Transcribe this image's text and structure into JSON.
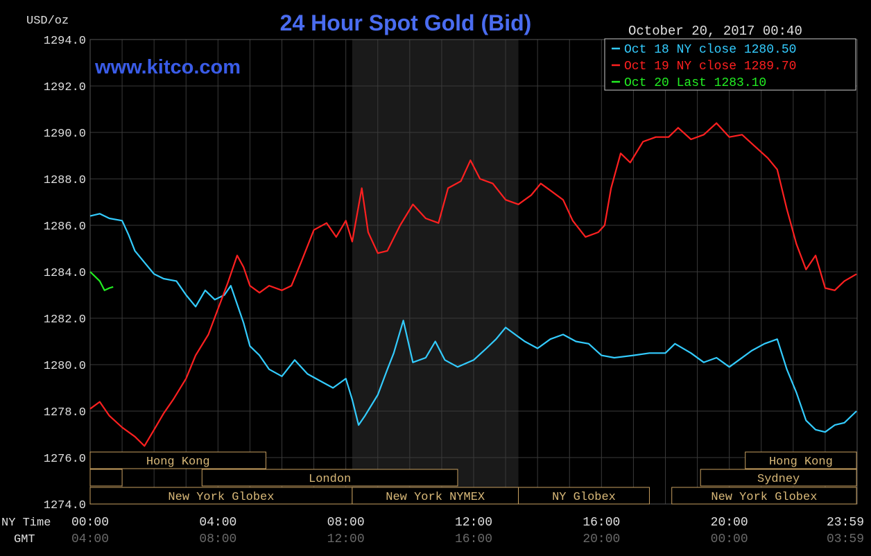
{
  "chart_data": {
    "type": "line",
    "title": "24 Hour Spot Gold (Bid)",
    "watermark": "www.kitco.com",
    "timestamp": "October 20, 2017 00:40",
    "ylabel": "USD/oz",
    "ylim": [
      1274,
      1294
    ],
    "yticks": [
      "1294.0",
      "1292.0",
      "1290.0",
      "1288.0",
      "1286.0",
      "1284.0",
      "1282.0",
      "1280.0",
      "1278.0",
      "1276.0",
      "1274.0"
    ],
    "xlim": [
      0,
      24
    ],
    "ny_time_label": "NY Time",
    "gmt_label": "GMT",
    "x_ticks": [
      {
        "h": 0,
        "ny": "00:00",
        "gmt": "04:00"
      },
      {
        "h": 4,
        "ny": "04:00",
        "gmt": "08:00"
      },
      {
        "h": 8,
        "ny": "08:00",
        "gmt": "12:00"
      },
      {
        "h": 12,
        "ny": "12:00",
        "gmt": "16:00"
      },
      {
        "h": 16,
        "ny": "16:00",
        "gmt": "20:00"
      },
      {
        "h": 20,
        "ny": "20:00",
        "gmt": "00:00"
      },
      {
        "h": 23.98,
        "ny": "23:59",
        "gmt": "03:59"
      }
    ],
    "shaded_hours": [
      8.2,
      13.4
    ],
    "grid": true,
    "legend_position": "top-right",
    "series": [
      {
        "name": "Oct 18 NY close 1280.50",
        "color": "#33ccff",
        "points": [
          [
            0,
            1286.4
          ],
          [
            0.3,
            1286.5
          ],
          [
            0.6,
            1286.3
          ],
          [
            1,
            1286.2
          ],
          [
            1.2,
            1285.6
          ],
          [
            1.4,
            1284.9
          ],
          [
            1.7,
            1284.4
          ],
          [
            2,
            1283.9
          ],
          [
            2.3,
            1283.7
          ],
          [
            2.7,
            1283.6
          ],
          [
            3,
            1283.0
          ],
          [
            3.3,
            1282.5
          ],
          [
            3.6,
            1283.2
          ],
          [
            3.9,
            1282.8
          ],
          [
            4.2,
            1283.0
          ],
          [
            4.4,
            1283.4
          ],
          [
            4.6,
            1282.6
          ],
          [
            4.8,
            1281.8
          ],
          [
            5,
            1280.8
          ],
          [
            5.3,
            1280.4
          ],
          [
            5.6,
            1279.8
          ],
          [
            6,
            1279.5
          ],
          [
            6.4,
            1280.2
          ],
          [
            6.8,
            1279.6
          ],
          [
            7.2,
            1279.3
          ],
          [
            7.6,
            1279.0
          ],
          [
            8,
            1279.4
          ],
          [
            8.2,
            1278.5
          ],
          [
            8.4,
            1277.4
          ],
          [
            8.6,
            1277.8
          ],
          [
            9,
            1278.7
          ],
          [
            9.3,
            1279.8
          ],
          [
            9.5,
            1280.5
          ],
          [
            9.8,
            1281.9
          ],
          [
            10.1,
            1280.1
          ],
          [
            10.5,
            1280.3
          ],
          [
            10.8,
            1281.0
          ],
          [
            11.1,
            1280.2
          ],
          [
            11.5,
            1279.9
          ],
          [
            12,
            1280.2
          ],
          [
            12.4,
            1280.7
          ],
          [
            12.7,
            1281.1
          ],
          [
            13,
            1281.6
          ],
          [
            13.3,
            1281.3
          ],
          [
            13.6,
            1281.0
          ],
          [
            14,
            1280.7
          ],
          [
            14.4,
            1281.1
          ],
          [
            14.8,
            1281.3
          ],
          [
            15.2,
            1281.0
          ],
          [
            15.6,
            1280.9
          ],
          [
            16,
            1280.4
          ],
          [
            16.4,
            1280.3
          ],
          [
            17,
            1280.4
          ],
          [
            17.5,
            1280.5
          ],
          [
            18,
            1280.5
          ],
          [
            18.3,
            1280.9
          ],
          [
            18.8,
            1280.5
          ],
          [
            19.2,
            1280.1
          ],
          [
            19.6,
            1280.3
          ],
          [
            20,
            1279.9
          ],
          [
            20.3,
            1280.2
          ],
          [
            20.7,
            1280.6
          ],
          [
            21.1,
            1280.9
          ],
          [
            21.5,
            1281.1
          ],
          [
            21.8,
            1279.8
          ],
          [
            22.1,
            1278.8
          ],
          [
            22.4,
            1277.6
          ],
          [
            22.7,
            1277.2
          ],
          [
            23,
            1277.1
          ],
          [
            23.3,
            1277.4
          ],
          [
            23.6,
            1277.5
          ],
          [
            23.98,
            1278.0
          ]
        ]
      },
      {
        "name": "Oct 19 NY close 1289.70",
        "color": "#ff2020",
        "points": [
          [
            0,
            1278.1
          ],
          [
            0.3,
            1278.4
          ],
          [
            0.6,
            1277.8
          ],
          [
            1,
            1277.3
          ],
          [
            1.4,
            1276.9
          ],
          [
            1.7,
            1276.5
          ],
          [
            2,
            1277.2
          ],
          [
            2.3,
            1277.9
          ],
          [
            2.6,
            1278.5
          ],
          [
            3,
            1279.4
          ],
          [
            3.3,
            1280.4
          ],
          [
            3.7,
            1281.3
          ],
          [
            4,
            1282.4
          ],
          [
            4.3,
            1283.5
          ],
          [
            4.6,
            1284.7
          ],
          [
            4.8,
            1284.2
          ],
          [
            5,
            1283.4
          ],
          [
            5.3,
            1283.1
          ],
          [
            5.6,
            1283.4
          ],
          [
            6,
            1283.2
          ],
          [
            6.3,
            1283.4
          ],
          [
            6.6,
            1284.4
          ],
          [
            7,
            1285.8
          ],
          [
            7.4,
            1286.1
          ],
          [
            7.7,
            1285.5
          ],
          [
            8,
            1286.2
          ],
          [
            8.2,
            1285.3
          ],
          [
            8.5,
            1287.6
          ],
          [
            8.7,
            1285.7
          ],
          [
            9,
            1284.8
          ],
          [
            9.3,
            1284.9
          ],
          [
            9.7,
            1286.0
          ],
          [
            10.1,
            1286.9
          ],
          [
            10.5,
            1286.3
          ],
          [
            10.9,
            1286.1
          ],
          [
            11.2,
            1287.6
          ],
          [
            11.6,
            1287.9
          ],
          [
            11.9,
            1288.8
          ],
          [
            12.2,
            1288.0
          ],
          [
            12.6,
            1287.8
          ],
          [
            13,
            1287.1
          ],
          [
            13.4,
            1286.9
          ],
          [
            13.8,
            1287.3
          ],
          [
            14.1,
            1287.8
          ],
          [
            14.4,
            1287.5
          ],
          [
            14.8,
            1287.1
          ],
          [
            15.1,
            1286.2
          ],
          [
            15.5,
            1285.5
          ],
          [
            15.9,
            1285.7
          ],
          [
            16.1,
            1286.0
          ],
          [
            16.3,
            1287.6
          ],
          [
            16.6,
            1289.1
          ],
          [
            16.9,
            1288.7
          ],
          [
            17.3,
            1289.6
          ],
          [
            17.7,
            1289.8
          ],
          [
            18.1,
            1289.8
          ],
          [
            18.4,
            1290.2
          ],
          [
            18.8,
            1289.7
          ],
          [
            19.2,
            1289.9
          ],
          [
            19.6,
            1290.4
          ],
          [
            20,
            1289.8
          ],
          [
            20.4,
            1289.9
          ],
          [
            20.8,
            1289.4
          ],
          [
            21.2,
            1288.9
          ],
          [
            21.5,
            1288.4
          ],
          [
            21.8,
            1286.7
          ],
          [
            22.1,
            1285.2
          ],
          [
            22.4,
            1284.1
          ],
          [
            22.7,
            1284.7
          ],
          [
            23,
            1283.3
          ],
          [
            23.3,
            1283.2
          ],
          [
            23.6,
            1283.6
          ],
          [
            23.98,
            1283.9
          ]
        ]
      },
      {
        "name": "Oct 20 Last 1283.10",
        "color": "#22ee22",
        "points": [
          [
            0,
            1284.0
          ],
          [
            0.15,
            1283.8
          ],
          [
            0.3,
            1283.6
          ],
          [
            0.45,
            1283.2
          ],
          [
            0.6,
            1283.3
          ],
          [
            0.72,
            1283.35
          ]
        ]
      }
    ],
    "market_bars": [
      {
        "label": "Hong Kong",
        "row": 1,
        "start": 0,
        "end": 5.5,
        "text": true
      },
      {
        "label": "Hong Kong",
        "row": 1,
        "start": 20.5,
        "end": 23.98,
        "text": true
      },
      {
        "label": "",
        "row": 2,
        "start": 0,
        "end": 1,
        "text": false
      },
      {
        "label": "London",
        "row": 2,
        "start": 3.5,
        "end": 11.5,
        "text": true
      },
      {
        "label": "Sydney",
        "row": 2,
        "start": 19.1,
        "end": 23.98,
        "text": true
      },
      {
        "label": "New York Globex",
        "row": 3,
        "start": 0,
        "end": 8.2,
        "text": true
      },
      {
        "label": "New York NYMEX",
        "row": 3,
        "start": 8.2,
        "end": 13.4,
        "text": true
      },
      {
        "label": "NY Globex",
        "row": 3,
        "start": 13.4,
        "end": 17.5,
        "text": true
      },
      {
        "label": "New York Globex",
        "row": 3,
        "start": 18.2,
        "end": 23.98,
        "text": true
      }
    ]
  }
}
